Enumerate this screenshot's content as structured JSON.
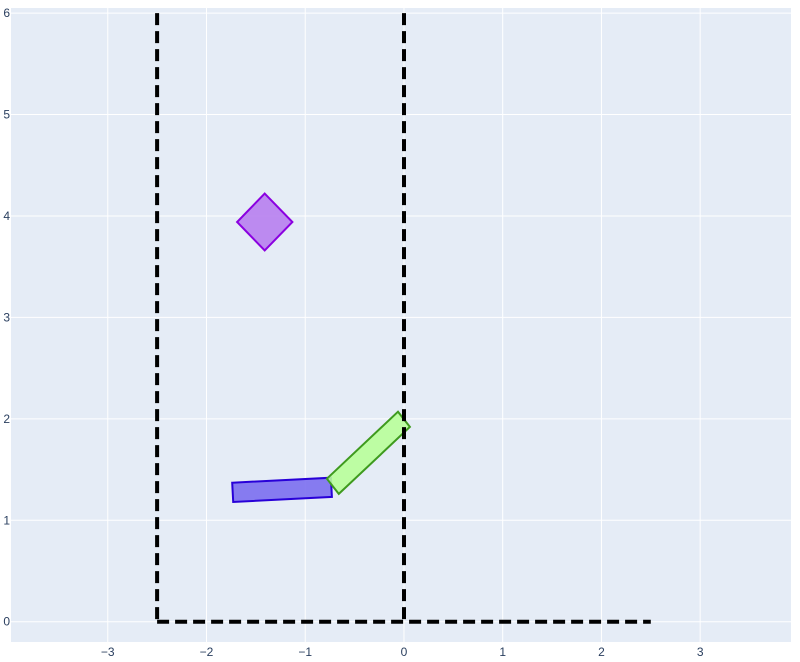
{
  "chart_data": {
    "type": "scatter",
    "title": "",
    "xlabel": "",
    "ylabel": "",
    "xlim": [
      -3.98,
      3.92
    ],
    "ylim": [
      -0.2,
      6.05
    ],
    "grid": true,
    "x_ticks": [
      {
        "value": -3,
        "label": "−3"
      },
      {
        "value": -2,
        "label": "−2"
      },
      {
        "value": -1,
        "label": "−1"
      },
      {
        "value": 0,
        "label": "0"
      },
      {
        "value": 1,
        "label": "1"
      },
      {
        "value": 2,
        "label": "2"
      },
      {
        "value": 3,
        "label": "3"
      }
    ],
    "y_ticks": [
      {
        "value": 0,
        "label": "0"
      },
      {
        "value": 1,
        "label": "1"
      },
      {
        "value": 2,
        "label": "2"
      },
      {
        "value": 3,
        "label": "3"
      },
      {
        "value": 4,
        "label": "4"
      },
      {
        "value": 5,
        "label": "5"
      },
      {
        "value": 6,
        "label": "6"
      }
    ],
    "lines": [
      {
        "name": "left-wall",
        "style": "dashed",
        "color": "#000000",
        "points": [
          [
            -2.5,
            6.0
          ],
          [
            -2.5,
            0.0
          ]
        ]
      },
      {
        "name": "floor",
        "style": "dashed",
        "color": "#000000",
        "points": [
          [
            -2.5,
            0.0
          ],
          [
            2.5,
            0.0
          ]
        ]
      },
      {
        "name": "center-wall",
        "style": "dashed",
        "color": "#000000",
        "points": [
          [
            0.0,
            6.0
          ],
          [
            0.0,
            0.0
          ]
        ]
      }
    ],
    "shapes": [
      {
        "name": "diamond",
        "fill": "#b77ff0",
        "stroke": "#8b00e0",
        "points": [
          [
            -1.41,
            4.22
          ],
          [
            -1.13,
            3.94
          ],
          [
            -1.41,
            3.66
          ],
          [
            -1.69,
            3.94
          ]
        ]
      },
      {
        "name": "blue-bar",
        "fill": "#7b6ff0",
        "stroke": "#2800d8",
        "points": [
          [
            -1.74,
            1.37
          ],
          [
            -0.74,
            1.42
          ],
          [
            -0.73,
            1.23
          ],
          [
            -1.73,
            1.18
          ]
        ]
      },
      {
        "name": "green-bar",
        "fill": "#b8ff9a",
        "stroke": "#3e9a1e",
        "points": [
          [
            -0.78,
            1.41
          ],
          [
            -0.06,
            2.07
          ],
          [
            0.06,
            1.92
          ],
          [
            -0.66,
            1.26
          ]
        ]
      }
    ]
  }
}
